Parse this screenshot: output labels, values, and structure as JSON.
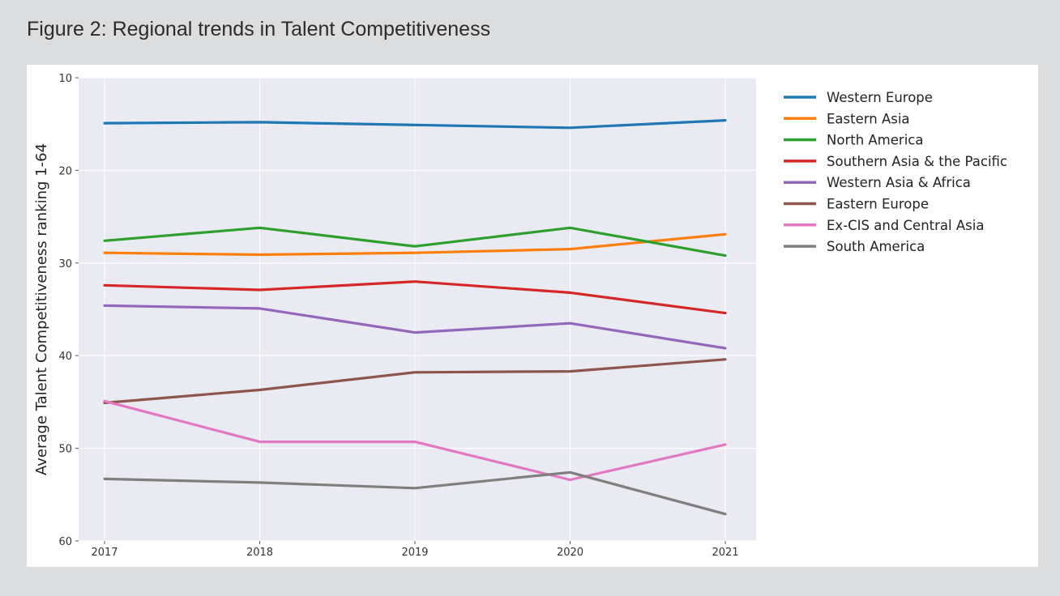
{
  "figure": {
    "title": "Figure 2: Regional trends in Talent Competitiveness"
  },
  "chart_data": {
    "type": "line",
    "title": "",
    "xlabel": "",
    "ylabel": "Average Talent Competitiveness ranking 1-64",
    "x": [
      "2017",
      "2018",
      "2019",
      "2020",
      "2021"
    ],
    "ylim": [
      60,
      10
    ],
    "y_inverted": true,
    "yticks": [
      10,
      20,
      30,
      40,
      50,
      60
    ],
    "grid": true,
    "legend_position": "right",
    "background_color": "#e9eaf2",
    "series": [
      {
        "name": "Western Europe",
        "color": "#1f77b4",
        "values": [
          14.9,
          14.8,
          15.1,
          15.4,
          14.6
        ]
      },
      {
        "name": "Eastern Asia",
        "color": "#ff7f0e",
        "values": [
          28.9,
          29.1,
          28.9,
          28.5,
          26.9
        ]
      },
      {
        "name": "North America",
        "color": "#2ca02c",
        "values": [
          27.6,
          26.2,
          28.2,
          26.2,
          29.2
        ]
      },
      {
        "name": "Southern Asia & the Pacific",
        "color": "#d62728",
        "values": [
          32.4,
          32.9,
          32.0,
          33.2,
          35.4
        ]
      },
      {
        "name": "Western Asia & Africa",
        "color": "#9467bd",
        "values": [
          34.6,
          34.9,
          37.5,
          36.5,
          39.2
        ]
      },
      {
        "name": "Eastern Europe",
        "color": "#8c564b",
        "values": [
          45.1,
          43.7,
          41.8,
          41.7,
          40.4
        ]
      },
      {
        "name": "Ex-CIS and Central Asia",
        "color": "#e377c2",
        "values": [
          44.9,
          49.3,
          49.3,
          53.4,
          49.6
        ]
      },
      {
        "name": "South America",
        "color": "#7f7f7f",
        "values": [
          53.3,
          53.7,
          54.3,
          52.6,
          57.1
        ]
      }
    ]
  }
}
